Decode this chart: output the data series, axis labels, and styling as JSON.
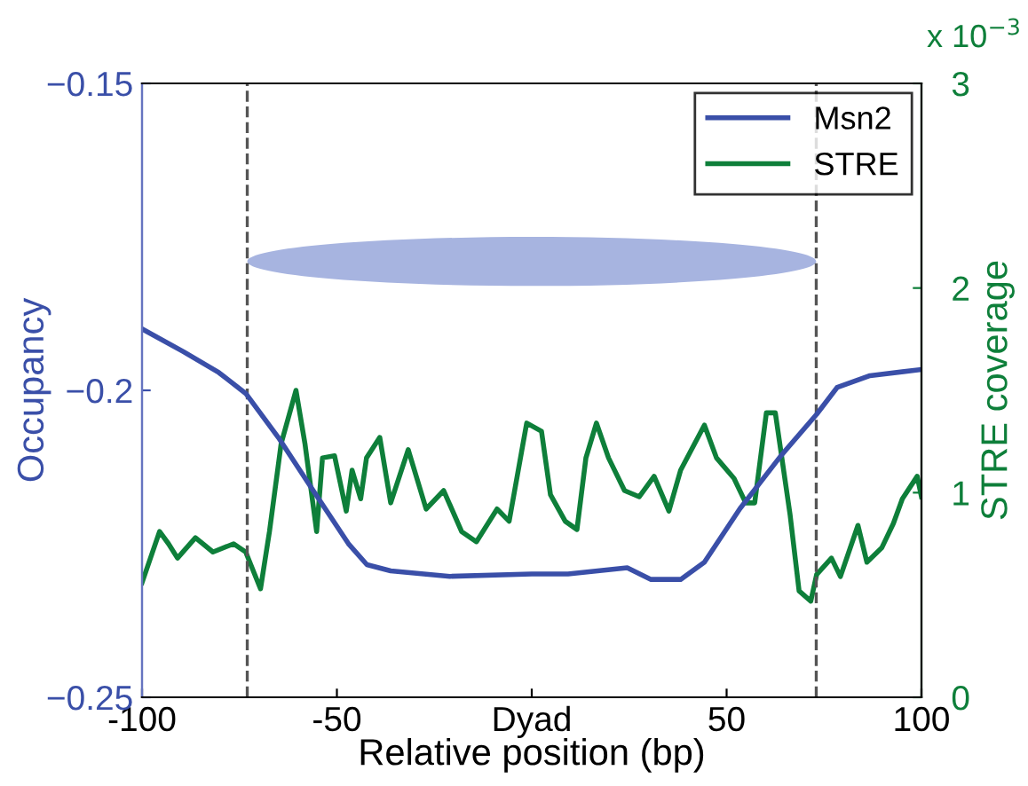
{
  "chart_data": {
    "type": "line",
    "xlabel": "Relative position (bp)",
    "ylabel": "Occupancy",
    "y2label": "STRE coverage",
    "annotations": [
      "x 10$^{−3}$"
    ],
    "xlim": [
      -100,
      100
    ],
    "xticks": [
      -100,
      -50,
      {
        "value": 0,
        "label": "Dyad"
      },
      50,
      100
    ],
    "ylim": [
      -0.25,
      -0.15
    ],
    "yticks": [
      {
        "value": -0.25,
        "label": "−0.25"
      },
      {
        "value": -0.2,
        "label": "−0.2"
      },
      {
        "value": -0.15,
        "label": "−0.15"
      }
    ],
    "y2lim": [
      0,
      3
    ],
    "y2ticks": [
      0,
      1,
      2,
      3
    ],
    "legend": "top right",
    "grid": false,
    "line_style": "solid",
    "ref_lines": [
      {
        "axis": "x",
        "value": -73,
        "color": "#555555",
        "line_style": "dashed"
      },
      {
        "axis": "x",
        "value": 73,
        "color": "#555555",
        "line_style": "dashed"
      }
    ],
    "series": [
      {
        "name": "Msn2",
        "color": "#3a4fa8",
        "x": [
          -100,
          -89.4,
          -80.3,
          -73.4,
          -65,
          -56,
          -46.9,
          -42.3,
          -36.2,
          -21,
          0,
          9.3,
          24.5,
          30.6,
          38.2,
          44.3,
          53.4,
          64,
          73.1,
          78.4,
          86.8,
          100
        ],
        "values": [
          -0.19,
          -0.1937,
          -0.1971,
          -0.2005,
          -0.2077,
          -0.2164,
          -0.2251,
          -0.2284,
          -0.2294,
          -0.2303,
          -0.2299,
          -0.2299,
          -0.2289,
          -0.2308,
          -0.2308,
          -0.228,
          -0.2193,
          -0.2106,
          -0.2039,
          -0.1995,
          -0.1976,
          -0.1966
        ]
      },
      {
        "name": "STRE",
        "color": "#0e7f3a",
        "axis": "y2",
        "x": [
          -100,
          -95.5,
          -93.2,
          -90.9,
          -86.3,
          -81.8,
          -76.5,
          -73.4,
          -69.6,
          -67.3,
          -64.3,
          -60.5,
          -58.2,
          -55.2,
          -53.7,
          -50.6,
          -47.6,
          -46.1,
          -43.9,
          -42.4,
          -39,
          -36.2,
          -31.7,
          -27.1,
          -22.6,
          -18,
          -14.2,
          -8.9,
          -5.8,
          -1.3,
          2.5,
          4.8,
          8.6,
          11.6,
          13.9,
          16.6,
          19.7,
          23.8,
          27.6,
          31.4,
          35.2,
          38.2,
          44.3,
          47.4,
          51.9,
          54.9,
          57.2,
          60.2,
          62.5,
          66.3,
          68.6,
          71.6,
          73.1,
          76.9,
          79.2,
          83.7,
          86,
          89.8,
          92.8,
          95.1,
          98.9,
          100
        ],
        "values": [
          0.56,
          0.81,
          0.75,
          0.68,
          0.78,
          0.71,
          0.75,
          0.71,
          0.53,
          0.81,
          1.24,
          1.5,
          1.24,
          0.81,
          1.17,
          1.18,
          0.91,
          1.11,
          0.97,
          1.17,
          1.27,
          0.95,
          1.21,
          0.92,
          1.01,
          0.81,
          0.76,
          0.92,
          0.86,
          1.34,
          1.3,
          0.99,
          0.86,
          0.82,
          1.17,
          1.34,
          1.17,
          1.01,
          0.98,
          1.08,
          0.91,
          1.11,
          1.33,
          1.17,
          1.07,
          0.95,
          0.95,
          1.39,
          1.39,
          0.89,
          0.52,
          0.47,
          0.6,
          0.68,
          0.59,
          0.84,
          0.66,
          0.73,
          0.85,
          0.97,
          1.08,
          0.98
        ]
      }
    ]
  }
}
